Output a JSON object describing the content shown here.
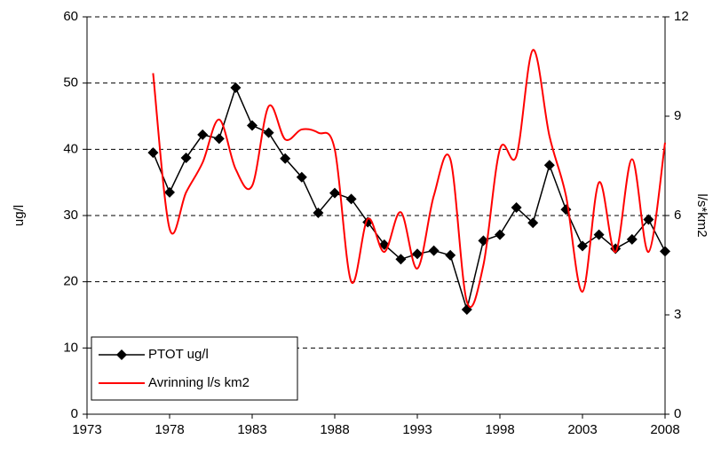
{
  "chart_data": {
    "type": "line",
    "x": [
      1977,
      1978,
      1979,
      1980,
      1981,
      1982,
      1983,
      1984,
      1985,
      1986,
      1987,
      1988,
      1989,
      1990,
      1991,
      1992,
      1993,
      1994,
      1995,
      1996,
      1997,
      1998,
      1999,
      2000,
      2001,
      2002,
      2003,
      2004,
      2005,
      2006,
      2007,
      2008
    ],
    "y_label": "ug/l",
    "y2_label": "l/s*km2",
    "series": [
      {
        "name": "PTOT ug/l",
        "color": "#000000",
        "marker": "diamond",
        "values": [
          39.5,
          33.5,
          38.7,
          42.2,
          41.6,
          49.3,
          43.6,
          42.5,
          38.6,
          35.8,
          30.4,
          33.4,
          32.5,
          29,
          25.6,
          23.4,
          24.2,
          24.7,
          24,
          15.8,
          26.2,
          27.1,
          31.2,
          28.9,
          37.6,
          30.9,
          25.4,
          27.1,
          25,
          26.4,
          29.4,
          24.6
        ]
      },
      {
        "name": "Avrinning l/s km2",
        "color": "#ff0000",
        "axis": "y2",
        "smooth": true,
        "values": [
          10.3,
          5.6,
          6.7,
          7.6,
          8.9,
          7.4,
          6.9,
          9.3,
          8.3,
          8.6,
          8.5,
          8.0,
          4.0,
          5.9,
          4.9,
          6.1,
          4.4,
          6.6,
          7.7,
          3.4,
          4.5,
          8.0,
          7.8,
          11.0,
          8.4,
          6.6,
          3.7,
          7.0,
          4.9,
          7.7,
          4.9,
          8.2
        ]
      }
    ],
    "xlim": [
      1973,
      2008
    ],
    "xticks": [
      1973,
      1978,
      1983,
      1988,
      1993,
      1998,
      2003,
      2008
    ],
    "ylim": [
      0,
      60
    ],
    "yticks": [
      0,
      10,
      20,
      30,
      40,
      50,
      60
    ],
    "y2lim": [
      0,
      12
    ],
    "y2ticks": [
      0,
      3,
      6,
      9,
      12
    ],
    "grid": true,
    "legend": "lower-left"
  }
}
